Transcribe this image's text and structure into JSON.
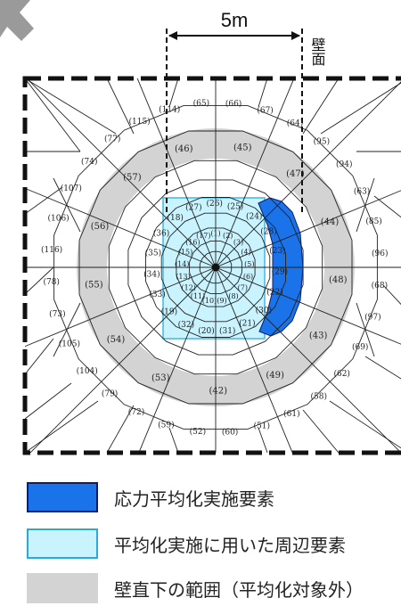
{
  "dimension": {
    "label": "5m"
  },
  "wall_label": "壁面",
  "colors": {
    "stress": "#1a73e8",
    "surround": "#c9f3ff",
    "wall_band": "#d3d3d3",
    "line": "#222222"
  },
  "element_numbers": {
    "outer": [
      "(65)",
      "(66)",
      "(67)",
      "(64)",
      "(95)",
      "(94)",
      "(63)",
      "(85)",
      "(96)",
      "(68)",
      "(97)",
      "(69)",
      "(62)",
      "(58)",
      "(61)",
      "(51)",
      "(60)",
      "(52)",
      "(59)",
      "(72)",
      "(79)",
      "(104)",
      "(105)",
      "(73)",
      "(78)",
      "(116)",
      "(106)",
      "(107)",
      "(74)",
      "(77)",
      "(115)",
      "(114)"
    ],
    "band": [
      "(46)",
      "(45)",
      "(47)",
      "(44)",
      "(48)",
      "(43)",
      "(49)",
      "(42)",
      "(53)",
      "(54)",
      "(55)",
      "(56)",
      "(57)"
    ],
    "inner": [
      "(27)",
      "(26)",
      "(25)",
      "(24)",
      "(28)",
      "(23)",
      "(29)",
      "(22)",
      "(30)",
      "(21)",
      "(31)",
      "(20)",
      "(32)",
      "(19)",
      "(33)",
      "(34)",
      "(35)",
      "(36)",
      "(18)"
    ],
    "core": [
      "(1)",
      "(2)",
      "(3)",
      "(4)",
      "(5)",
      "(6)",
      "(7)",
      "(8)",
      "(9)",
      "(10)",
      "(11)",
      "(12)",
      "(13)",
      "(14)",
      "(15)",
      "(16)",
      "(17)"
    ]
  },
  "legend": [
    {
      "label": "応力平均化実施要素",
      "color": "#1a73e8",
      "border": "#0b1d6b"
    },
    {
      "label": "平均化実施に用いた周辺要素",
      "color": "#c9f3ff",
      "border": "#2aaad8"
    },
    {
      "label": "壁直下の範囲（平均化対象外）",
      "color": "#d3d3d3",
      "border": "#d3d3d3"
    }
  ]
}
